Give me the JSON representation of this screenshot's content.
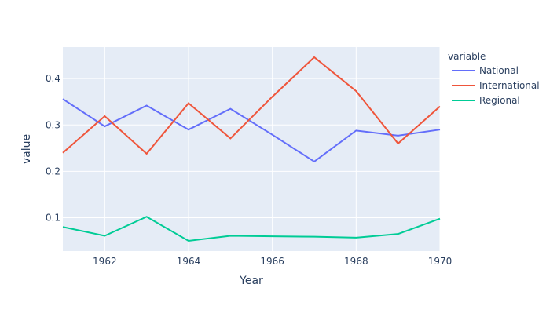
{
  "chart_data": {
    "type": "line",
    "title": "",
    "xlabel": "Year",
    "ylabel": "value",
    "x": [
      1961,
      1962,
      1963,
      1964,
      1965,
      1966,
      1967,
      1968,
      1969,
      1970
    ],
    "xlim": [
      1961,
      1970
    ],
    "ylim": [
      0.028,
      0.468
    ],
    "xticks": [
      1962,
      1964,
      1966,
      1968,
      1970
    ],
    "yticks": [
      0.1,
      0.2,
      0.3,
      0.4
    ],
    "xtick_labels": [
      "1962",
      "1964",
      "1966",
      "1968",
      "1970"
    ],
    "ytick_labels": [
      "0.1",
      "0.2",
      "0.3",
      "0.4"
    ],
    "grid": true,
    "legend_title": "variable",
    "legend_position": "top-right outside",
    "series": [
      {
        "name": "National",
        "color": "#636efa",
        "values": [
          0.356,
          0.297,
          0.342,
          0.29,
          0.335,
          0.279,
          0.221,
          0.288,
          0.277,
          0.29
        ]
      },
      {
        "name": "International",
        "color": "#ef553b",
        "values": [
          0.24,
          0.319,
          0.238,
          0.347,
          0.271,
          0.361,
          0.446,
          0.373,
          0.26,
          0.34
        ]
      },
      {
        "name": "Regional",
        "color": "#00cc96",
        "values": [
          0.08,
          0.061,
          0.102,
          0.05,
          0.061,
          0.06,
          0.059,
          0.057,
          0.065,
          0.098
        ]
      }
    ]
  }
}
